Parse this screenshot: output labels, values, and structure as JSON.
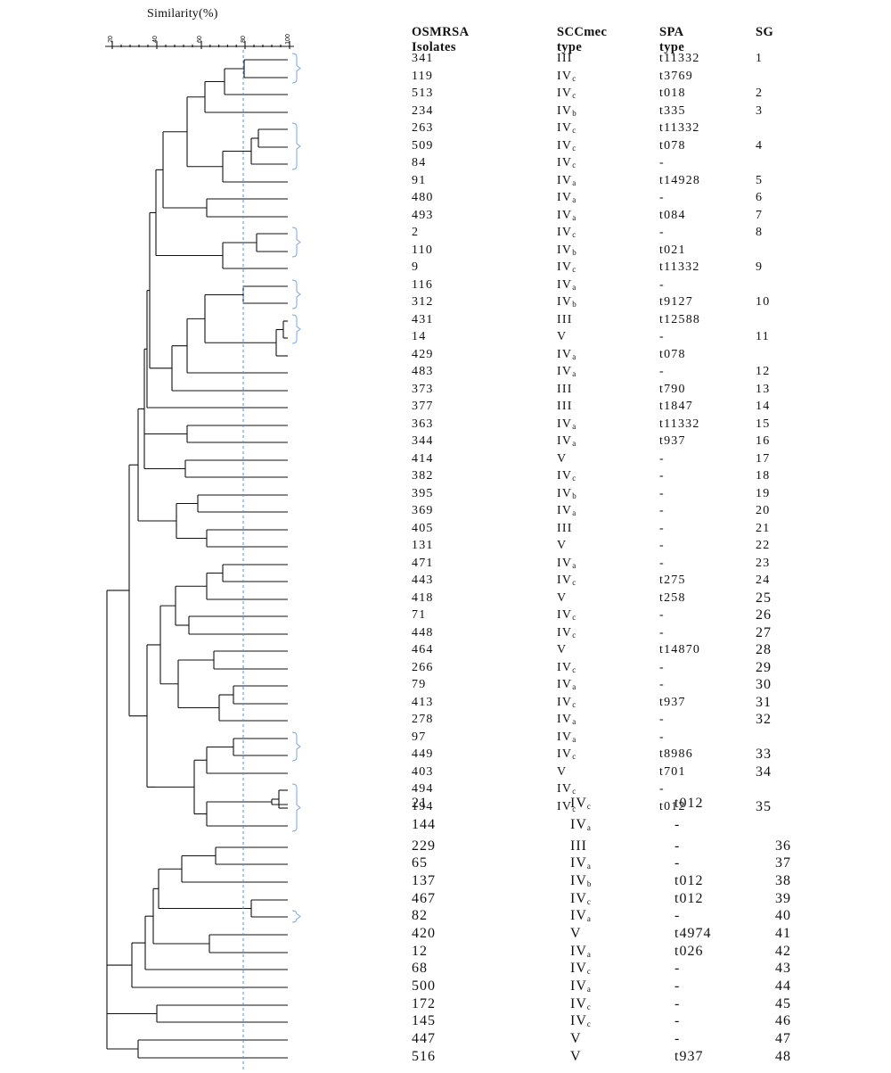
{
  "axis": {
    "title": "Similarity(%)",
    "ticks": [
      "20",
      "40",
      "60",
      "80",
      "100"
    ]
  },
  "headers": {
    "isolates": [
      "OSMRSA",
      "Isolates"
    ],
    "sccmec": [
      "SCCmec",
      "type"
    ],
    "spa": [
      "SPA",
      "type"
    ],
    "sg": [
      "SG"
    ]
  },
  "rows": [
    {
      "isolate": "341",
      "scc": "III",
      "spa": "t11332",
      "sg": "1"
    },
    {
      "isolate": "119",
      "scc": "IV",
      "sub": "c",
      "spa": "t3769",
      "sg": ""
    },
    {
      "isolate": "513",
      "scc": "IV",
      "sub": "c",
      "spa": "t018",
      "sg": "2"
    },
    {
      "isolate": "234",
      "scc": "IV",
      "sub": "b",
      "spa": "t335",
      "sg": "3"
    },
    {
      "isolate": "263",
      "scc": "IV",
      "sub": "c",
      "spa": "t11332",
      "sg": ""
    },
    {
      "isolate": "509",
      "scc": "IV",
      "sub": "c",
      "spa": "t078",
      "sg": "4"
    },
    {
      "isolate": "84",
      "scc": "IV",
      "sub": "c",
      "spa": "-",
      "sg": ""
    },
    {
      "isolate": "91",
      "scc": "IV",
      "sub": "a",
      "spa": "t14928",
      "sg": "5"
    },
    {
      "isolate": "480",
      "scc": "IV",
      "sub": "a",
      "spa": "-",
      "sg": "6"
    },
    {
      "isolate": "493",
      "scc": "IV",
      "sub": "a",
      "spa": "t084",
      "sg": "7"
    },
    {
      "isolate": "2",
      "scc": "IV",
      "sub": "c",
      "spa": "-",
      "sg": "8"
    },
    {
      "isolate": "110",
      "scc": "IV",
      "sub": "b",
      "spa": "t021",
      "sg": ""
    },
    {
      "isolate": "9",
      "scc": "IV",
      "sub": "c",
      "spa": "t11332",
      "sg": "9"
    },
    {
      "isolate": "116",
      "scc": "IV",
      "sub": "a",
      "spa": "-",
      "sg": ""
    },
    {
      "isolate": "312",
      "scc": "IV",
      "sub": "b",
      "spa": "t9127",
      "sg": "10"
    },
    {
      "isolate": "431",
      "scc": "III",
      "spa": "t12588",
      "sg": ""
    },
    {
      "isolate": "14",
      "scc": "V",
      "spa": "-",
      "sg": "11"
    },
    {
      "isolate": "429",
      "scc": "IV",
      "sub": "a",
      "spa": "t078",
      "sg": ""
    },
    {
      "isolate": "483",
      "scc": "IV",
      "sub": "a",
      "spa": "-",
      "sg": "12"
    },
    {
      "isolate": "373",
      "scc": "III",
      "spa": "t790",
      "sg": "13"
    },
    {
      "isolate": "377",
      "scc": "III",
      "spa": "t1847",
      "sg": "14"
    },
    {
      "isolate": "363",
      "scc": "IV",
      "sub": "a",
      "spa": "t11332",
      "sg": "15"
    },
    {
      "isolate": "344",
      "scc": "IV",
      "sub": "a",
      "spa": "t937",
      "sg": "16"
    },
    {
      "isolate": "414",
      "scc": "V",
      "spa": "-",
      "sg": "17"
    },
    {
      "isolate": "382",
      "scc": "IV",
      "sub": "c",
      "spa": "-",
      "sg": "18"
    },
    {
      "isolate": "395",
      "scc": "IV",
      "sub": "b",
      "spa": "-",
      "sg": "19"
    },
    {
      "isolate": "369",
      "scc": "IV",
      "sub": "a",
      "spa": "-",
      "sg": "20"
    },
    {
      "isolate": "405",
      "scc": "III",
      "spa": "-",
      "sg": "21"
    },
    {
      "isolate": "131",
      "scc": "V",
      "spa": "-",
      "sg": "22"
    },
    {
      "isolate": "471",
      "scc": "IV",
      "sub": "a",
      "spa": "-",
      "sg": "23"
    },
    {
      "isolate": "443",
      "scc": "IV",
      "sub": "c",
      "spa": "t275",
      "sg": "24"
    },
    {
      "isolate": "418",
      "scc": "V",
      "spa": "t258",
      "sg": "25"
    },
    {
      "isolate": "71",
      "scc": "IV",
      "sub": "c",
      "spa": "-",
      "sg": "26"
    },
    {
      "isolate": "448",
      "scc": "IV",
      "sub": "c",
      "spa": "-",
      "sg": "27"
    },
    {
      "isolate": "464",
      "scc": "V",
      "spa": "t14870",
      "sg": "28"
    },
    {
      "isolate": "266",
      "scc": "IV",
      "sub": "c",
      "spa": "-",
      "sg": "29"
    },
    {
      "isolate": "79",
      "scc": "IV",
      "sub": "a",
      "spa": "-",
      "sg": "30"
    },
    {
      "isolate": "413",
      "scc": "IV",
      "sub": "c",
      "spa": "t937",
      "sg": "31"
    },
    {
      "isolate": "278",
      "scc": "IV",
      "sub": "a",
      "spa": "-",
      "sg": "32"
    },
    {
      "isolate": "97",
      "scc": "IV",
      "sub": "a",
      "spa": "-",
      "sg": ""
    },
    {
      "isolate": "449",
      "scc": "IV",
      "sub": "c",
      "spa": "t8986",
      "sg": "33"
    },
    {
      "isolate": "403",
      "scc": "V",
      "spa": "t701",
      "sg": "34"
    },
    {
      "isolate": "494",
      "scc": "IV",
      "sub": "c",
      "spa": "-",
      "sg": ""
    },
    {
      "isolate": "194",
      "scc": "IV",
      "sub": "c",
      "spa": "t012",
      "sg": "35"
    },
    {
      "isolate": "21",
      "scc": "IV",
      "sub": "c",
      "spa": "t012",
      "sg": ""
    },
    {
      "isolate": "144",
      "scc": "IV",
      "sub": "a",
      "spa": "-",
      "sg": ""
    },
    {
      "isolate": "229",
      "scc": "III",
      "spa": "-",
      "sg": "36"
    },
    {
      "isolate": "65",
      "scc": "IV",
      "sub": "a",
      "spa": "-",
      "sg": "37"
    },
    {
      "isolate": "137",
      "scc": "IV",
      "sub": "b",
      "spa": "t012",
      "sg": "38"
    },
    {
      "isolate": "467",
      "scc": "IV",
      "sub": "c",
      "spa": "t012",
      "sg": "39"
    },
    {
      "isolate": "82",
      "scc": "IV",
      "sub": "a",
      "spa": "-",
      "sg": "40"
    },
    {
      "isolate": "420",
      "scc": "V",
      "spa": "t4974",
      "sg": "41"
    },
    {
      "isolate": "12",
      "scc": "IV",
      "sub": "a",
      "spa": "t026",
      "sg": "42"
    },
    {
      "isolate": "68",
      "scc": "IV",
      "sub": "c",
      "spa": "-",
      "sg": "43"
    },
    {
      "isolate": "500",
      "scc": "IV",
      "sub": "a",
      "spa": "-",
      "sg": "44"
    },
    {
      "isolate": "172",
      "scc": "IV",
      "sub": "c",
      "spa": "-",
      "sg": "45"
    },
    {
      "isolate": "145",
      "scc": "IV",
      "sub": "c",
      "spa": "-",
      "sg": "46"
    },
    {
      "isolate": "447",
      "scc": "V",
      "spa": "-",
      "sg": "47"
    },
    {
      "isolate": "516",
      "scc": "V",
      "spa": "t937",
      "sg": "48"
    }
  ],
  "colors": {
    "cutoff": "#5b8fd0",
    "bracket": "#7aa7e0",
    "ink": "#111111"
  }
}
